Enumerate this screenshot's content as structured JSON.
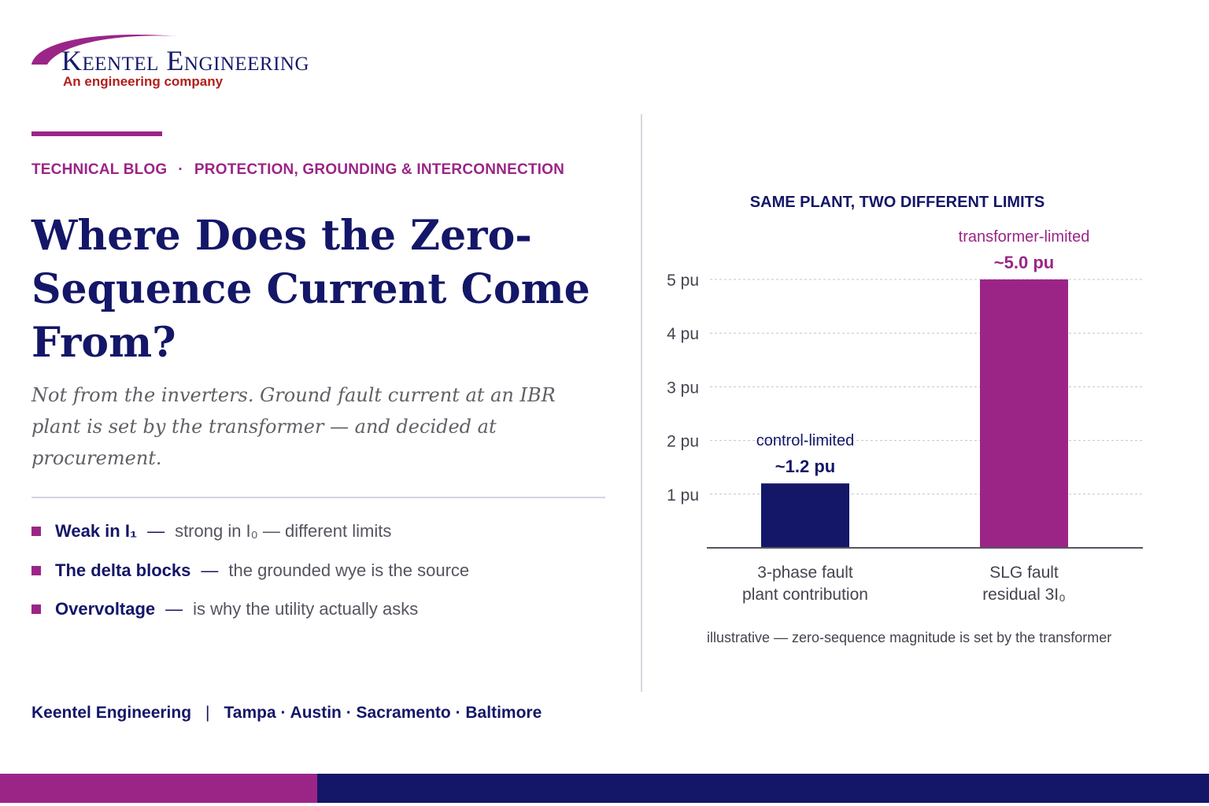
{
  "brand": {
    "name": "Keentel Engineering",
    "tagline": "An engineering company"
  },
  "colors": {
    "navy": "#141668",
    "magenta": "#9b2587",
    "tagline_red": "#b0201e",
    "gray_text": "#555561"
  },
  "kicker": {
    "category": "TECHNICAL BLOG",
    "separator": "·",
    "topic": "PROTECTION, GROUNDING & INTERCONNECTION"
  },
  "headline": "Where Does the Zero-Sequence Current Come From?",
  "subhead": "Not from the inverters. Ground fault current at an IBR plant is set by the transformer — and decided at procurement.",
  "bullets": [
    {
      "strong_label": "Weak in I₁",
      "dash": "—",
      "text": "strong in I₀ — different limits"
    },
    {
      "strong_label": "The delta blocks",
      "dash": "—",
      "text": "the grounded wye is the source"
    },
    {
      "strong_label": "Overvoltage",
      "dash": "—",
      "text": "is why the utility actually asks"
    }
  ],
  "footer": {
    "company": "Keentel Engineering",
    "separator": "|",
    "locations": "Tampa · Austin · Sacramento · Baltimore"
  },
  "chart_data": {
    "type": "bar",
    "title": "SAME PLANT, TWO DIFFERENT LIMITS",
    "categories": [
      [
        "3-phase fault",
        "plant contribution"
      ],
      [
        "SLG fault",
        "residual 3I₀"
      ]
    ],
    "values": [
      1.2,
      5.0
    ],
    "value_labels": [
      "~1.2 pu",
      "~5.0 pu"
    ],
    "annotations": [
      "control-limited",
      "transformer-limited"
    ],
    "bar_colors": [
      "#141668",
      "#9b2587"
    ],
    "yticks": [
      1,
      2,
      3,
      4,
      5
    ],
    "ytick_labels": [
      "1 pu",
      "2 pu",
      "3 pu",
      "4 pu",
      "5 pu"
    ],
    "ylim": [
      0,
      5
    ],
    "grid": true,
    "grid_style": "dashed",
    "note": "illustrative — zero-sequence magnitude is set by the transformer"
  }
}
